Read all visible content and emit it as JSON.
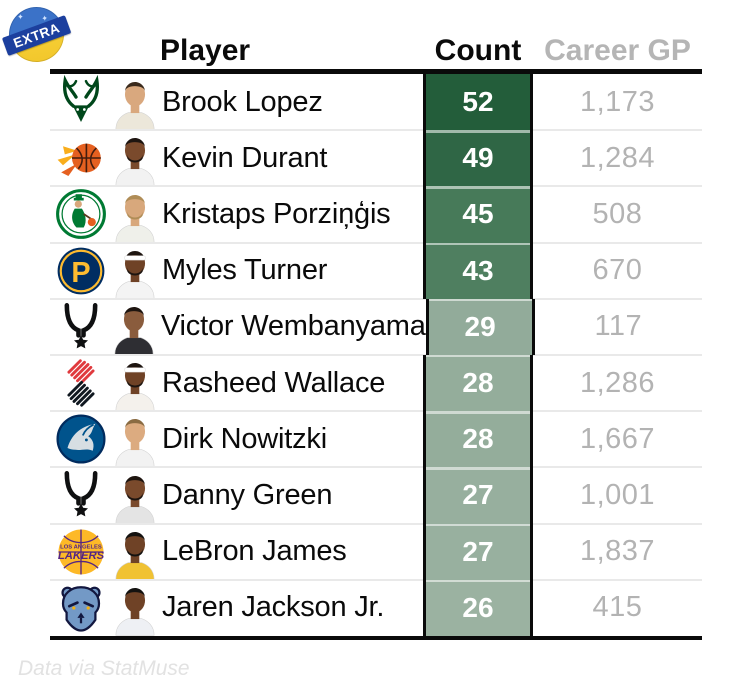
{
  "badge": {
    "label": "EXTRA",
    "circle_top_color": "#3b72c8",
    "circle_bottom_color": "#f6cf35",
    "ribbon_color": "#1c3f9e",
    "text_color": "#ffffff"
  },
  "table": {
    "headers": {
      "player": "Player",
      "count": "Count",
      "career_gp": "Career GP"
    },
    "header_colors": {
      "player": "#0a0a0a",
      "count": "#0a0a0a",
      "career_gp": "#b5b5b5"
    },
    "count_scale": {
      "dark": "#235D3A",
      "light": "#9BB2A1"
    },
    "rows": [
      {
        "player": "Brook Lopez",
        "team": "Milwaukee Bucks",
        "team_key": "bucks",
        "count": "52",
        "career_gp": "1,173",
        "count_bg": "#235D3A",
        "appearance": {
          "skin": "#d9a87e",
          "hair": "#3a2a1c",
          "jersey": "#ece7da",
          "headband": false,
          "beard": false
        }
      },
      {
        "player": "Kevin Durant",
        "team": "Phoenix Suns",
        "team_key": "suns",
        "count": "49",
        "career_gp": "1,284",
        "count_bg": "#2F6645",
        "appearance": {
          "skin": "#7a4a2c",
          "hair": "#1e1510",
          "jersey": "#f2f2f2",
          "headband": false,
          "beard": true
        }
      },
      {
        "player": "Kristaps Porziņģis",
        "team": "Boston Celtics",
        "team_key": "celtics",
        "count": "45",
        "career_gp": "508",
        "count_bg": "#477A59",
        "appearance": {
          "skin": "#d8a87c",
          "hair": "#b08d57",
          "jersey": "#eff0ea",
          "headband": false,
          "beard": true
        }
      },
      {
        "player": "Myles Turner",
        "team": "Indiana Pacers",
        "team_key": "pacers",
        "count": "43",
        "career_gp": "670",
        "count_bg": "#4F7F60",
        "appearance": {
          "skin": "#6f4226",
          "hair": "#1e1510",
          "jersey": "#f4f4f4",
          "headband": true,
          "beard": true
        }
      },
      {
        "player": "Victor Wembanyama",
        "team": "San Antonio Spurs",
        "team_key": "spurs",
        "count": "29",
        "career_gp": "117",
        "count_bg": "#92AB9A",
        "appearance": {
          "skin": "#8a5c3d",
          "hair": "#1e1510",
          "jersey": "#2e2e33",
          "headband": false,
          "beard": false
        }
      },
      {
        "player": "Rasheed Wallace",
        "team": "Portland Trail Blazers",
        "team_key": "blazers",
        "count": "28",
        "career_gp": "1,286",
        "count_bg": "#94AD9B",
        "appearance": {
          "skin": "#6f4226",
          "hair": "#1e1510",
          "jersey": "#f4f1ec",
          "headband": true,
          "beard": true
        }
      },
      {
        "player": "Dirk Nowitzki",
        "team": "Dallas Mavericks",
        "team_key": "mavericks",
        "count": "28",
        "career_gp": "1,667",
        "count_bg": "#94AD9B",
        "appearance": {
          "skin": "#dcab80",
          "hair": "#8a6b42",
          "jersey": "#f2f2f2",
          "headband": false,
          "beard": false
        }
      },
      {
        "player": "Danny Green",
        "team": "San Antonio Spurs",
        "team_key": "spurs",
        "count": "27",
        "career_gp": "1,001",
        "count_bg": "#97AF9E",
        "appearance": {
          "skin": "#7a4a2c",
          "hair": "#1e1510",
          "jersey": "#e4e4e4",
          "headband": false,
          "beard": true
        }
      },
      {
        "player": "LeBron James",
        "team": "Los Angeles Lakers",
        "team_key": "lakers",
        "count": "27",
        "career_gp": "1,837",
        "count_bg": "#98B09F",
        "appearance": {
          "skin": "#6f4226",
          "hair": "#141210",
          "jersey": "#f0c233",
          "headband": false,
          "beard": true
        }
      },
      {
        "player": "Jaren Jackson Jr.",
        "team": "Memphis Grizzlies",
        "team_key": "grizzlies",
        "count": "26",
        "career_gp": "415",
        "count_bg": "#9BB2A1",
        "appearance": {
          "skin": "#6f4226",
          "hair": "#141210",
          "jersey": "#eef0f4",
          "headband": false,
          "beard": false
        }
      }
    ]
  },
  "footer": {
    "credit": "Data via StatMuse"
  },
  "chart_data": {
    "type": "table",
    "title": "",
    "columns": [
      "Player",
      "Count",
      "Career GP"
    ],
    "rows": [
      [
        "Brook Lopez",
        52,
        1173
      ],
      [
        "Kevin Durant",
        49,
        1284
      ],
      [
        "Kristaps Porziņģis",
        45,
        508
      ],
      [
        "Myles Turner",
        43,
        670
      ],
      [
        "Victor Wembanyama",
        29,
        117
      ],
      [
        "Rasheed Wallace",
        28,
        1286
      ],
      [
        "Dirk Nowitzki",
        28,
        1667
      ],
      [
        "Danny Green",
        27,
        1001
      ],
      [
        "LeBron James",
        27,
        1837
      ],
      [
        "Jaren Jackson Jr.",
        26,
        415
      ]
    ],
    "notes": "Count cells shaded green; darker green = higher count. Source credit: Data via StatMuse"
  }
}
